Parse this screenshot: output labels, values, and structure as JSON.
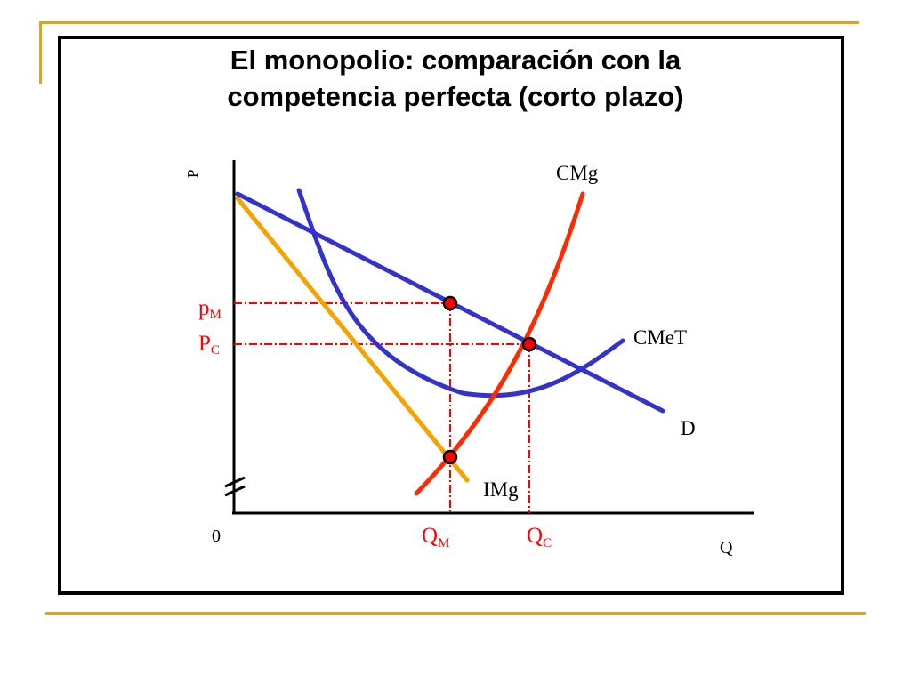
{
  "slide": {
    "title_line1": "El monopolio: comparación con la",
    "title_line2": "competencia perfecta (corto plazo)"
  },
  "axes": {
    "y_label": "P",
    "x_label": "Q",
    "origin_label": "0"
  },
  "curves": {
    "marginal_cost": "CMg",
    "average_total_cost": "CMeT",
    "demand": "D",
    "marginal_revenue": "IMg"
  },
  "markers": {
    "monopoly_price": {
      "main": "p",
      "sub": "M"
    },
    "competitive_price": {
      "main": "P",
      "sub": "C"
    },
    "monopoly_quantity": {
      "main": "Q",
      "sub": "M"
    },
    "competitive_quantity": {
      "main": "Q",
      "sub": "C"
    }
  },
  "colors": {
    "demand": "#3333CC",
    "average_total_cost": "#3333CC",
    "marginal_cost": "#FF2A00",
    "marginal_revenue": "#F5A300",
    "guide_lines": "#FF0000",
    "price_labels": "#FF0000",
    "decoration": "#DAA520",
    "axes": "#000000"
  }
}
